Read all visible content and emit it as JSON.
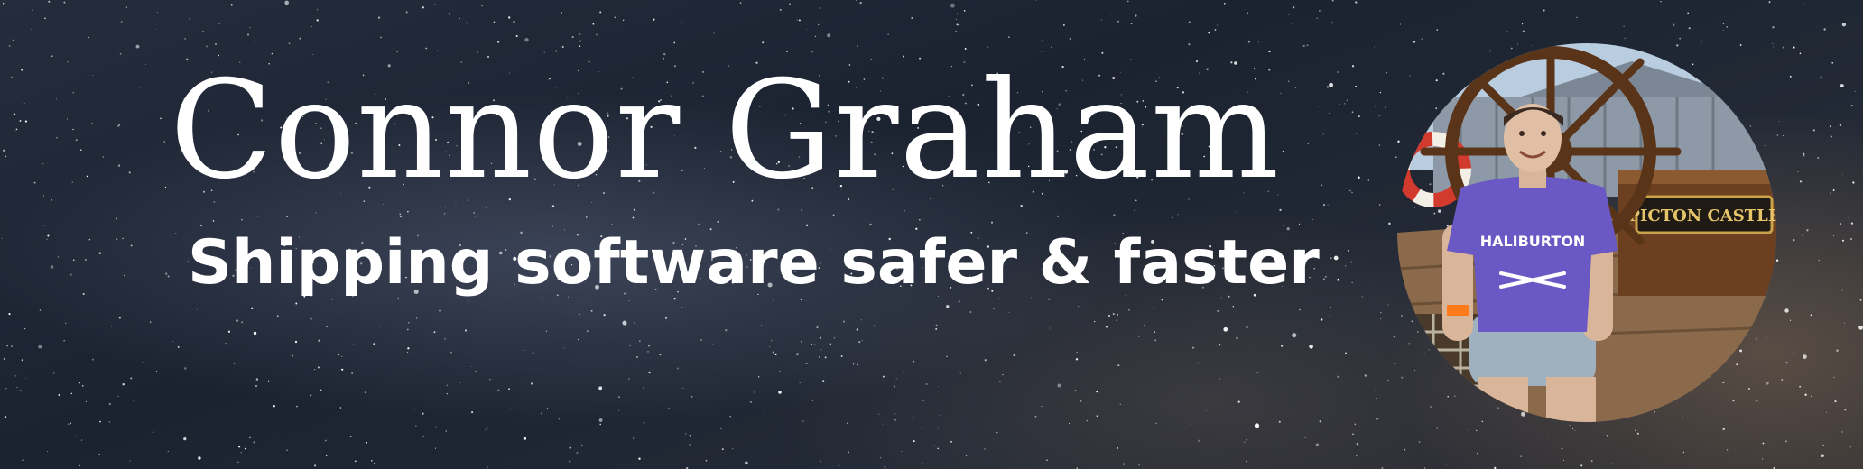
{
  "header": {
    "name": "Connor Graham",
    "tagline": "Shipping software safer & faster"
  },
  "avatar": {
    "icon": "profile-photo",
    "nameplate_text": "PICTON CASTLE",
    "shirt_text": "HALIBURTON"
  },
  "colors": {
    "text": "#ffffff",
    "shirt": "#6a58c4",
    "wood": "#6b3f1f",
    "sky": "#b9cde0"
  }
}
